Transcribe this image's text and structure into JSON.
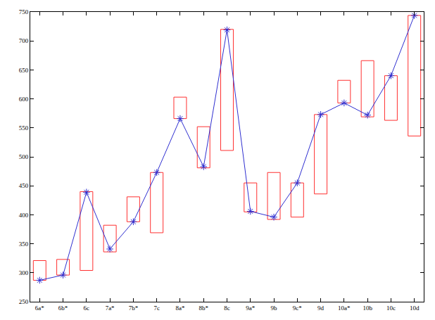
{
  "chart_data": {
    "type": "line",
    "categories": [
      "6a*",
      "6b*",
      "6c",
      "7a*",
      "7b*",
      "7c",
      "8a*",
      "8b*",
      "8c",
      "9a*",
      "9b",
      "9c*",
      "9d",
      "10a*",
      "10b",
      "10c",
      "10d"
    ],
    "series": [
      {
        "type": "line",
        "color": "#2f2fd0",
        "marker": "asterisk",
        "line_style": "solid",
        "values": [
          287,
          296,
          439,
          341,
          388,
          473,
          566,
          483,
          719,
          406,
          396,
          455,
          573,
          593,
          572,
          640,
          744
        ]
      },
      {
        "type": "box",
        "color": "#ff3030",
        "lows": [
          287,
          296,
          304,
          336,
          388,
          369,
          566,
          481,
          511,
          405,
          392,
          396,
          436,
          593,
          569,
          563,
          536
        ],
        "highs": [
          321,
          323,
          440,
          382,
          431,
          473,
          603,
          552,
          720,
          455,
          473,
          455,
          573,
          632,
          666,
          640,
          744
        ]
      }
    ],
    "ylim": [
      250,
      750
    ],
    "yticks": [
      250,
      300,
      350,
      400,
      450,
      500,
      550,
      600,
      650,
      700,
      750
    ],
    "grid": false
  }
}
